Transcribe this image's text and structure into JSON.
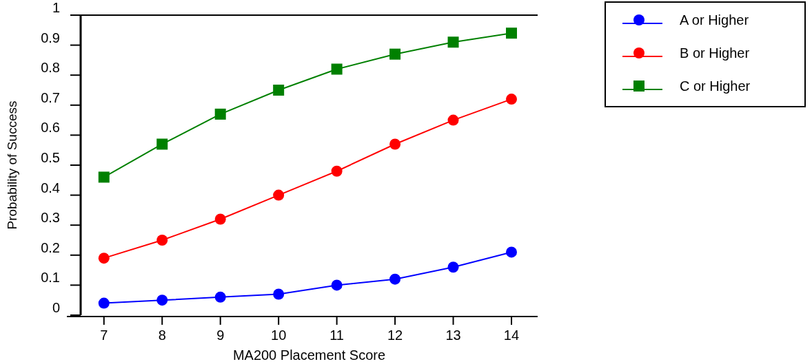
{
  "chart_data": {
    "type": "line",
    "xlabel": "MA200 Placement Score",
    "ylabel": "Probability of Success",
    "x": [
      7,
      8,
      9,
      10,
      11,
      12,
      13,
      14
    ],
    "series": [
      {
        "name": "A or Higher",
        "color": "#0000ff",
        "marker": "circle",
        "values": [
          0.04,
          0.05,
          0.06,
          0.07,
          0.1,
          0.12,
          0.16,
          0.21
        ]
      },
      {
        "name": "B or Higher",
        "color": "#ff0000",
        "marker": "circle",
        "values": [
          0.19,
          0.25,
          0.32,
          0.4,
          0.48,
          0.57,
          0.65,
          0.72
        ]
      },
      {
        "name": "C or Higher",
        "color": "#008000",
        "marker": "square",
        "values": [
          0.46,
          0.57,
          0.67,
          0.75,
          0.82,
          0.87,
          0.91,
          0.94
        ]
      }
    ],
    "xlim": [
      6.6,
      14.45
    ],
    "xticks": [
      7,
      8,
      9,
      10,
      11,
      12,
      13,
      14
    ],
    "ylim": [
      0,
      1
    ],
    "yticks": [
      0,
      0.1,
      0.2,
      0.3,
      0.4,
      0.5,
      0.6,
      0.7,
      0.8,
      0.9,
      1
    ],
    "grid": false,
    "legend": "top right",
    "line_style": "solid"
  }
}
